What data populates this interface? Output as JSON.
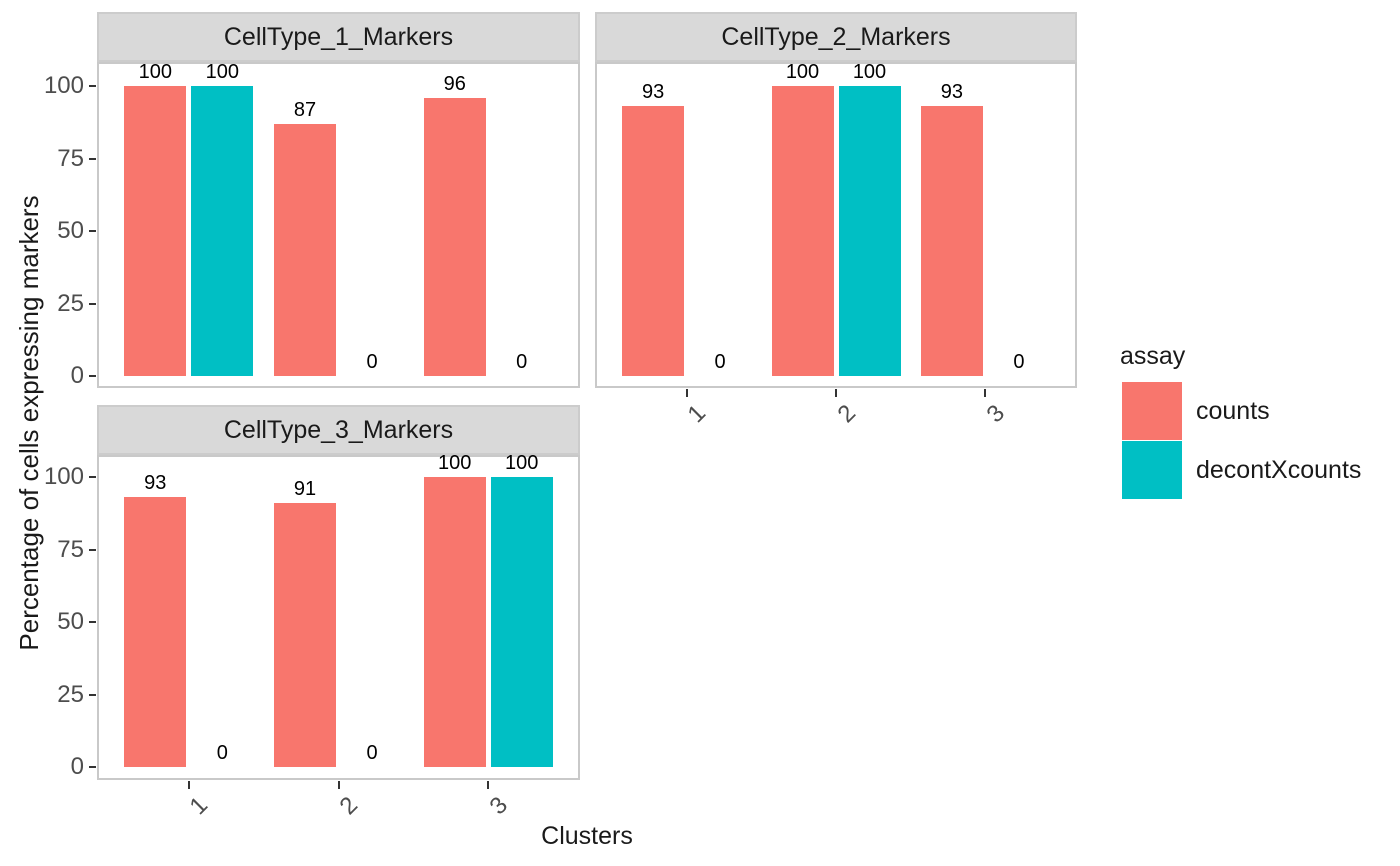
{
  "figure": {
    "y_axis_title": "Percentage of cells expressing markers",
    "x_axis_title": "Clusters"
  },
  "legend": {
    "title": "assay",
    "items": [
      {
        "label": "counts",
        "color": "#F8766D"
      },
      {
        "label": "decontXcounts",
        "color": "#00BFC4"
      }
    ]
  },
  "chart_data": {
    "type": "bar",
    "title": "",
    "xlabel": "Clusters",
    "ylabel": "Percentage of cells expressing markers",
    "categories": [
      "1",
      "2",
      "3"
    ],
    "y_ticks": [
      0,
      25,
      50,
      75,
      100
    ],
    "ylim": [
      0,
      100
    ],
    "grid": false,
    "legend_position": "right",
    "bar_value_labels": true,
    "colors": {
      "counts": "#F8766D",
      "decontXcounts": "#00BFC4"
    },
    "strip_background": "#D9D9D9",
    "panel_border_color": "#C9C9C9",
    "facets": [
      {
        "title": "CellType_1_Markers",
        "series": [
          {
            "name": "counts",
            "values": [
              100,
              87,
              96
            ]
          },
          {
            "name": "decontXcounts",
            "values": [
              100,
              0,
              0
            ]
          }
        ]
      },
      {
        "title": "CellType_2_Markers",
        "series": [
          {
            "name": "counts",
            "values": [
              93,
              100,
              93
            ]
          },
          {
            "name": "decontXcounts",
            "values": [
              0,
              100,
              0
            ]
          }
        ]
      },
      {
        "title": "CellType_3_Markers",
        "series": [
          {
            "name": "counts",
            "values": [
              93,
              91,
              100
            ]
          },
          {
            "name": "decontXcounts",
            "values": [
              0,
              0,
              100
            ]
          }
        ]
      }
    ]
  }
}
